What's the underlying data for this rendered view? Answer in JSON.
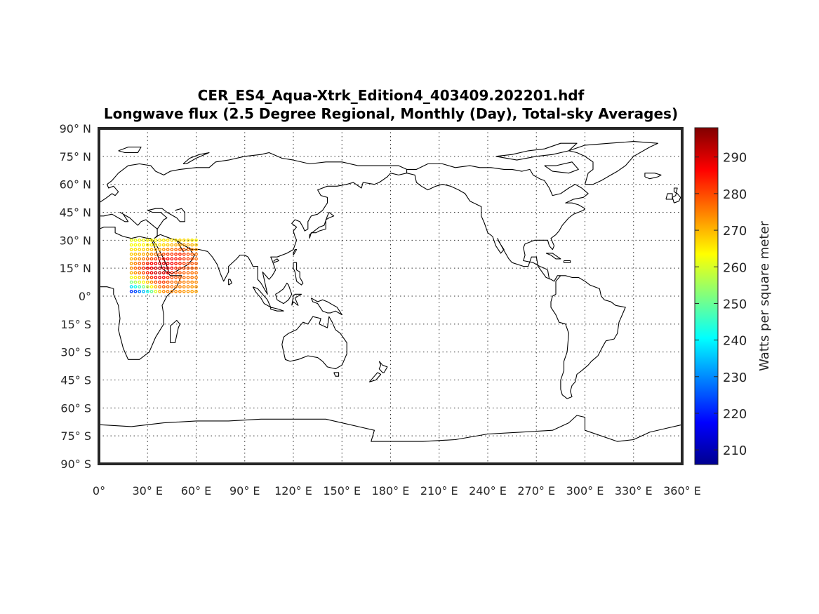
{
  "title": "CER_ES4_Aqua-Xtrk_Edition4_403409.202201.hdf",
  "subtitle": "Longwave flux (2.5 Degree Regional, Monthly (Day), Total-sky Averages)",
  "map": {
    "projection": "equirectangular",
    "lon_range": [
      0,
      360
    ],
    "lat_range": [
      -90,
      90
    ],
    "grid": true,
    "coastlines": true,
    "lon_ticks": [
      "0°",
      "30° E",
      "60° E",
      "90° E",
      "120° E",
      "150° E",
      "180° E",
      "210° E",
      "240° E",
      "270° E",
      "300° E",
      "330° E",
      "360° E"
    ],
    "lat_ticks": [
      "90° N",
      "75° N",
      "60° N",
      "45° N",
      "30° N",
      "15° N",
      "0°",
      "15° S",
      "30° S",
      "45° S",
      "60° S",
      "75° S",
      "90° S"
    ]
  },
  "colorbar": {
    "label": "Watts per square meter",
    "range": [
      206,
      298
    ],
    "colormap": "jet",
    "ticks": [
      "290",
      "280",
      "270",
      "260",
      "250",
      "240",
      "230",
      "220",
      "210"
    ],
    "tick_values": [
      290,
      280,
      270,
      260,
      250,
      240,
      230,
      220,
      210
    ]
  },
  "chart_data": {
    "type": "scatter",
    "grid_cell_deg": 2.5,
    "region": {
      "lon": [
        20,
        60
      ],
      "lat": [
        1,
        30
      ]
    },
    "rows": [
      {
        "lat": 30,
        "lon0": 20,
        "step": 2.5,
        "values": [
          262,
          262,
          263,
          263,
          264,
          264,
          264,
          265,
          265,
          266,
          266,
          266,
          267,
          267,
          266,
          265,
          264
        ]
      },
      {
        "lat": 27.5,
        "lon0": 20,
        "step": 2.5,
        "values": [
          263,
          263,
          264,
          264,
          265,
          265,
          266,
          266,
          267,
          268,
          270,
          271,
          272,
          272,
          271,
          270,
          268
        ]
      },
      {
        "lat": 25,
        "lon0": 20,
        "step": 2.5,
        "values": [
          266,
          266,
          267,
          268,
          269,
          270,
          271,
          272,
          273,
          275,
          276,
          277,
          278,
          278,
          277,
          275,
          273
        ]
      },
      {
        "lat": 22.5,
        "lon0": 20,
        "step": 2.5,
        "values": [
          268,
          269,
          270,
          271,
          272,
          274,
          276,
          278,
          280,
          281,
          282,
          283,
          283,
          282,
          280,
          278,
          276
        ]
      },
      {
        "lat": 20,
        "lon0": 20,
        "step": 2.5,
        "values": [
          270,
          272,
          274,
          276,
          278,
          280,
          282,
          284,
          285,
          286,
          286,
          285,
          284,
          282,
          281,
          279,
          277
        ]
      },
      {
        "lat": 17.5,
        "lon0": 20,
        "step": 2.5,
        "values": [
          272,
          275,
          278,
          281,
          284,
          286,
          288,
          289,
          289,
          288,
          287,
          285,
          283,
          281,
          280,
          279,
          278
        ]
      },
      {
        "lat": 15,
        "lon0": 20,
        "step": 2.5,
        "values": [
          274,
          277,
          280,
          283,
          286,
          288,
          290,
          292,
          291,
          289,
          286,
          283,
          281,
          280,
          279,
          278,
          277
        ]
      },
      {
        "lat": 12.5,
        "lon0": 20,
        "step": 2.5,
        "values": [
          270,
          273,
          276,
          280,
          284,
          288,
          291,
          292,
          290,
          287,
          283,
          281,
          279,
          278,
          277,
          276,
          276
        ]
      },
      {
        "lat": 10,
        "lon0": 20,
        "step": 2.5,
        "values": [
          262,
          265,
          268,
          272,
          277,
          282,
          286,
          288,
          286,
          283,
          280,
          279,
          278,
          277,
          276,
          276,
          275
        ]
      },
      {
        "lat": 7.5,
        "lon0": 20,
        "step": 2.5,
        "values": [
          252,
          256,
          260,
          264,
          269,
          274,
          279,
          282,
          281,
          279,
          277,
          276,
          276,
          275,
          275,
          274,
          274
        ]
      },
      {
        "lat": 5,
        "lon0": 20,
        "step": 2.5,
        "values": [
          238,
          242,
          247,
          252,
          258,
          264,
          270,
          276,
          278,
          277,
          276,
          275,
          275,
          274,
          274,
          273,
          273
        ]
      },
      {
        "lat": 2.5,
        "lon0": 20,
        "step": 2.5,
        "values": [
          222,
          224,
          228,
          234,
          242,
          250,
          260,
          270,
          274,
          275,
          275,
          274,
          274,
          273,
          273,
          272,
          272
        ]
      }
    ]
  }
}
